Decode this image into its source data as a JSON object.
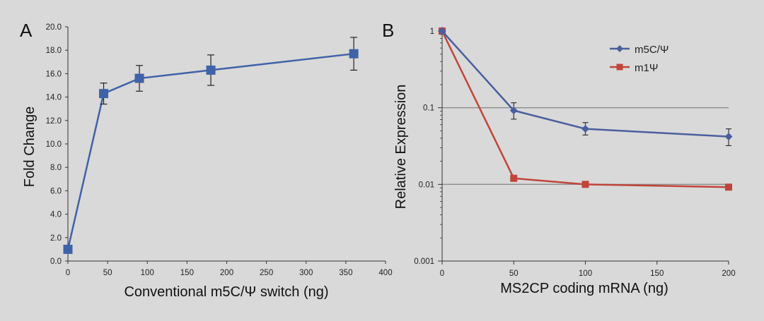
{
  "chart_data": [
    {
      "type": "line",
      "panel_label": "A",
      "xlabel": "Conventional m5C/Ψ switch (ng)",
      "ylabel": "Fold Change",
      "xlim": [
        0,
        400
      ],
      "ylim": [
        0,
        20
      ],
      "xticks": [
        "0",
        "50",
        "100",
        "150",
        "200",
        "250",
        "300",
        "350",
        "400"
      ],
      "yticks": [
        "0.0",
        "2.0",
        "4.0",
        "6.0",
        "8.0",
        "10.0",
        "12.0",
        "14.0",
        "16.0",
        "18.0",
        "20.0"
      ],
      "grid": false,
      "series": [
        {
          "color": "#3f62a8",
          "marker": "square",
          "x": [
            0,
            45,
            90,
            180,
            360
          ],
          "y": [
            1.0,
            14.3,
            15.6,
            16.3,
            17.7
          ],
          "err": [
            0.0,
            0.9,
            1.1,
            1.3,
            1.4
          ]
        }
      ]
    },
    {
      "type": "line",
      "panel_label": "B",
      "xlabel": "MS2CP coding mRNA (ng)",
      "ylabel": "Relative Expression",
      "xlim": [
        0,
        200
      ],
      "ylim": [
        0.001,
        1
      ],
      "yscale": "log",
      "xticks": [
        "0",
        "50",
        "100",
        "150",
        "200"
      ],
      "yticks": [
        "0.001",
        "0.01",
        "0.1",
        "1"
      ],
      "grid": "horizontal at 0.1 and 0.01",
      "legend_position": "top-right",
      "series": [
        {
          "name": "m5C/Ψ",
          "color": "#4a5f9e",
          "marker": "diamond",
          "x": [
            0,
            50,
            100,
            200
          ],
          "y": [
            1.0,
            0.092,
            0.053,
            0.042
          ],
          "err_low": [
            0.0,
            0.021,
            0.009,
            0.01
          ],
          "err_high": [
            0.0,
            0.024,
            0.011,
            0.011
          ]
        },
        {
          "name": "m1Ψ",
          "color": "#c0453a",
          "marker": "square",
          "x": [
            0,
            50,
            100,
            200
          ],
          "y": [
            1.0,
            0.012,
            0.01,
            0.0092
          ],
          "err_low": [
            0,
            0,
            0,
            0
          ],
          "err_high": [
            0,
            0,
            0,
            0
          ]
        }
      ]
    }
  ]
}
